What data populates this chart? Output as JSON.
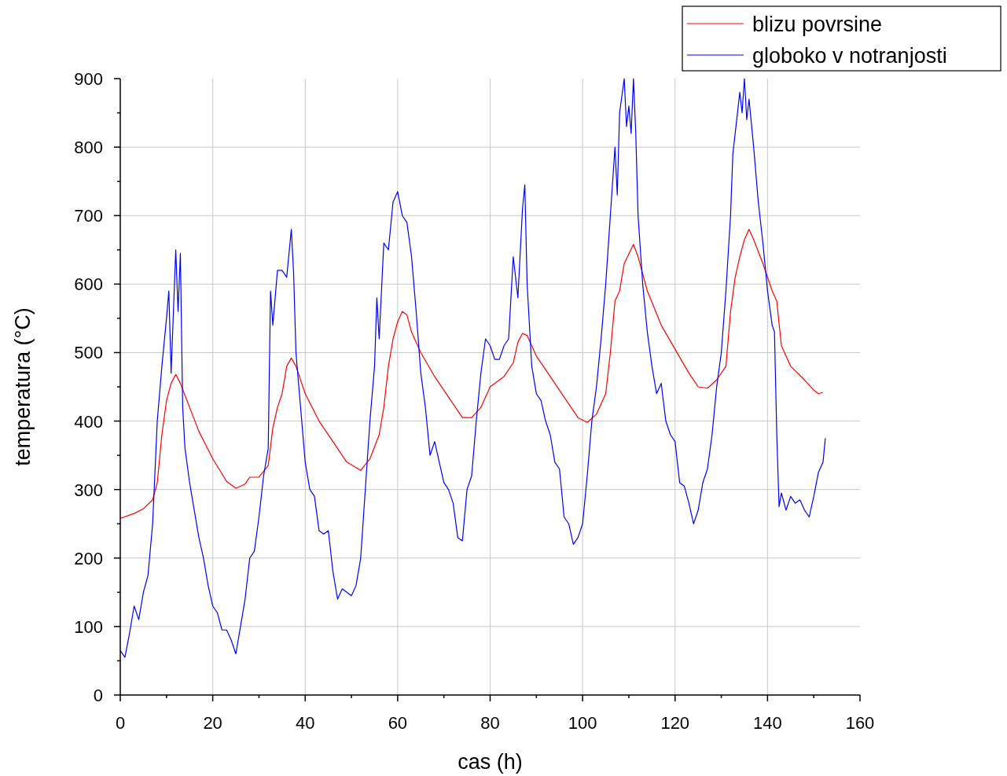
{
  "chart_data": {
    "type": "line",
    "xlabel": "cas (h)",
    "ylabel": "temperatura (°C)",
    "xlim": [
      0,
      160
    ],
    "ylim": [
      0,
      900
    ],
    "xticks": [
      0,
      {
        "value": 10,
        "label": null
      },
      20,
      {
        "value": 30,
        "label": null
      },
      40,
      {
        "value": 50,
        "label": null
      },
      60,
      {
        "value": 70,
        "label": null
      },
      80,
      {
        "value": 90,
        "label": null
      },
      100,
      {
        "value": 110,
        "label": null
      },
      120,
      {
        "value": 130,
        "label": null
      },
      140,
      {
        "value": 150,
        "label": null
      },
      160
    ],
    "yticks": [
      0,
      {
        "value": 50,
        "label": null
      },
      100,
      {
        "value": 150,
        "label": null
      },
      200,
      {
        "value": 250,
        "label": null
      },
      300,
      {
        "value": 350,
        "label": null
      },
      400,
      {
        "value": 450,
        "label": null
      },
      500,
      {
        "value": 550,
        "label": null
      },
      600,
      {
        "value": 650,
        "label": null
      },
      700,
      {
        "value": 750,
        "label": null
      },
      800,
      {
        "value": 850,
        "label": null
      },
      900
    ],
    "grid": true,
    "legend": "top right",
    "line_style": "solid",
    "marker": "none",
    "series": [
      {
        "name": "blizu povrsine",
        "color": "#ff0000",
        "x": [
          0,
          3,
          5,
          7,
          8,
          9,
          10,
          11,
          12,
          13,
          15,
          17,
          20,
          23,
          25,
          27,
          28,
          30,
          32,
          33,
          34,
          35,
          36,
          37,
          38,
          40,
          43,
          46,
          49,
          52,
          54,
          56,
          57,
          58,
          59,
          60,
          61,
          62,
          63,
          65,
          68,
          71,
          74,
          76,
          78,
          80,
          83,
          85,
          86,
          87,
          88,
          90,
          93,
          96,
          99,
          101,
          103,
          105,
          106,
          107,
          108,
          109,
          111,
          112,
          114,
          117,
          120,
          123,
          125,
          127,
          129,
          131,
          132,
          133,
          134,
          135,
          136,
          137,
          139,
          141,
          142,
          143,
          145,
          148,
          150,
          151,
          152
        ],
        "values": [
          258,
          265,
          272,
          285,
          310,
          380,
          430,
          455,
          468,
          455,
          420,
          385,
          345,
          312,
          302,
          308,
          318,
          318,
          335,
          390,
          420,
          440,
          480,
          492,
          480,
          440,
          400,
          370,
          340,
          328,
          345,
          380,
          420,
          480,
          520,
          545,
          560,
          555,
          530,
          500,
          465,
          435,
          405,
          405,
          420,
          450,
          465,
          485,
          515,
          528,
          525,
          495,
          465,
          435,
          405,
          398,
          410,
          440,
          500,
          575,
          590,
          630,
          658,
          640,
          590,
          540,
          505,
          470,
          450,
          448,
          460,
          480,
          560,
          610,
          640,
          665,
          680,
          665,
          630,
          590,
          575,
          510,
          480,
          460,
          445,
          440,
          442
        ]
      },
      {
        "name": "globoko v notranjosti",
        "color": "#0000ff",
        "x": [
          0,
          1,
          2,
          3,
          4,
          5,
          6,
          7,
          8,
          9,
          10,
          10.5,
          11,
          12,
          12.5,
          13,
          13.5,
          14,
          15,
          16,
          17,
          18,
          19,
          20,
          21,
          22,
          23,
          24,
          25,
          26,
          27,
          28,
          29,
          30,
          31,
          32,
          32.5,
          33,
          34,
          35,
          36,
          37,
          37.5,
          38,
          39,
          40,
          41,
          42,
          43,
          44,
          45,
          46,
          47,
          48,
          49,
          50,
          51,
          52,
          53,
          54,
          55,
          55.5,
          56,
          57,
          58,
          59,
          60,
          61,
          62,
          63,
          64,
          65,
          66,
          67,
          68,
          69,
          70,
          71,
          72,
          73,
          74,
          75,
          76,
          77,
          78,
          79,
          80,
          81,
          82,
          83,
          84,
          85,
          86,
          87,
          87.5,
          88,
          89,
          90,
          91,
          92,
          93,
          94,
          95,
          96,
          97,
          98,
          99,
          100,
          101,
          102,
          103,
          104,
          105,
          106,
          107,
          107.5,
          108,
          109,
          109.5,
          110,
          110.5,
          111,
          111.5,
          112,
          113,
          114,
          115,
          116,
          117,
          118,
          119,
          120,
          121,
          122,
          123,
          124,
          125,
          126,
          127,
          128,
          129,
          130,
          131,
          132,
          132.5,
          133,
          134,
          134.5,
          135,
          135.5,
          136,
          137,
          138,
          139,
          140,
          141,
          141.5,
          142,
          142.5,
          143,
          144,
          145,
          146,
          147,
          148,
          149,
          150,
          151,
          152,
          152.5
        ],
        "values": [
          65,
          55,
          90,
          130,
          110,
          150,
          175,
          250,
          400,
          480,
          550,
          590,
          470,
          650,
          560,
          645,
          420,
          360,
          310,
          270,
          230,
          200,
          160,
          130,
          120,
          95,
          95,
          80,
          60,
          100,
          140,
          200,
          210,
          260,
          320,
          360,
          590,
          540,
          620,
          620,
          610,
          680,
          615,
          500,
          420,
          340,
          300,
          290,
          240,
          235,
          240,
          180,
          140,
          155,
          150,
          145,
          160,
          200,
          300,
          400,
          480,
          580,
          520,
          660,
          650,
          720,
          735,
          700,
          690,
          640,
          560,
          470,
          420,
          350,
          370,
          340,
          310,
          300,
          280,
          230,
          225,
          300,
          320,
          400,
          470,
          520,
          510,
          490,
          490,
          510,
          520,
          640,
          580,
          710,
          745,
          600,
          480,
          440,
          430,
          400,
          380,
          340,
          330,
          260,
          250,
          220,
          230,
          250,
          320,
          400,
          450,
          520,
          600,
          700,
          800,
          730,
          850,
          900,
          830,
          860,
          820,
          900,
          820,
          700,
          600,
          530,
          480,
          440,
          455,
          400,
          380,
          370,
          310,
          305,
          280,
          250,
          270,
          310,
          330,
          380,
          450,
          500,
          590,
          700,
          790,
          820,
          880,
          850,
          900,
          840,
          870,
          800,
          720,
          660,
          590,
          540,
          530,
          380,
          275,
          295,
          270,
          290,
          280,
          285,
          270,
          260,
          290,
          325,
          340,
          375
        ]
      }
    ]
  }
}
